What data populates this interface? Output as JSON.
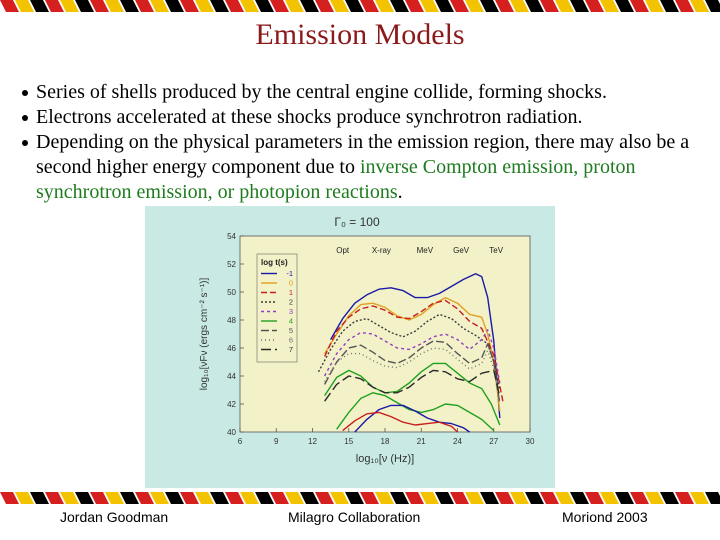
{
  "slide": {
    "title": "Emission Models",
    "bullets": [
      {
        "parts": [
          {
            "text": "Series of shells produced by the central engine  collide, forming shocks.",
            "color": "black"
          }
        ]
      },
      {
        "parts": [
          {
            "text": "Electrons accelerated at these shocks produce synchrotron radiation.",
            "color": "black"
          }
        ]
      },
      {
        "parts": [
          {
            "text": "Depending on the physical parameters in the emission region, there may also be a second higher energy component due to ",
            "color": "black"
          },
          {
            "text": "inverse Compton emission, proton synchrotron emission, or photopion reactions",
            "color": "green"
          },
          {
            "text": ".",
            "color": "black"
          }
        ]
      }
    ],
    "footer": {
      "left": "Jordan Goodman",
      "center": "Milagro Collaboration",
      "right": "Moriond 2003"
    },
    "stripe_colors": [
      "#d62020",
      "#f4c300",
      "#000000",
      "#ffffff"
    ]
  },
  "chart_data": {
    "type": "line",
    "title": "Γ₀ = 100",
    "xlabel": "log₁₀[ν (Hz)]",
    "ylabel": "log₁₀[νFν (ergs cm⁻² s⁻¹)]",
    "xlim": [
      6,
      30
    ],
    "ylim": [
      40,
      54
    ],
    "xticks": [
      6,
      9,
      12,
      15,
      18,
      21,
      24,
      27,
      30
    ],
    "yticks": [
      40,
      42,
      44,
      46,
      48,
      50,
      52,
      54
    ],
    "band_labels": [
      {
        "text": "Opt",
        "x": 14.5
      },
      {
        "text": "X-ray",
        "x": 17.7
      },
      {
        "text": "MeV",
        "x": 21.3
      },
      {
        "text": "GeV",
        "x": 24.3
      },
      {
        "text": "TeV",
        "x": 27.2
      }
    ],
    "legend_title": "log t(s)",
    "legend_position": "top-left",
    "grid": false,
    "background": "#f3f1c8",
    "series": [
      {
        "name": "-1",
        "color": "#1a1aa8",
        "dash": "",
        "x": [
          13.5,
          14.5,
          15.5,
          16.5,
          17.5,
          18.5,
          19.5,
          20.5,
          21.5,
          22.5,
          23.5,
          24.5,
          25.5,
          26.0,
          26.5,
          27.0,
          27.5
        ],
        "y": [
          46.6,
          48.1,
          49.2,
          49.8,
          50.2,
          50.3,
          50.1,
          49.6,
          49.6,
          49.9,
          50.4,
          50.9,
          51.3,
          51.1,
          49.6,
          46.5,
          41.0
        ]
      },
      {
        "name": "0",
        "color": "#e0a020",
        "dash": "",
        "x": [
          13.0,
          14.0,
          15.0,
          16.0,
          17.0,
          18.0,
          19.0,
          20.0,
          21.0,
          22.0,
          23.0,
          24.0,
          25.0,
          26.0,
          26.5,
          27.0,
          27.5
        ],
        "y": [
          45.6,
          47.0,
          48.3,
          49.1,
          49.2,
          48.9,
          48.3,
          48.0,
          48.4,
          49.1,
          49.6,
          49.2,
          48.4,
          48.2,
          47.0,
          45.0,
          41.5
        ]
      },
      {
        "name": "1",
        "color": "#c81e1e",
        "dash": "6,3",
        "x": [
          13.0,
          14.0,
          15.0,
          16.0,
          17.0,
          18.0,
          19.0,
          20.0,
          21.0,
          22.0,
          23.0,
          24.0,
          25.0,
          26.0,
          27.0,
          27.8
        ],
        "y": [
          45.4,
          47.2,
          48.2,
          48.8,
          49.0,
          48.7,
          48.2,
          48.1,
          48.6,
          49.2,
          49.4,
          48.8,
          47.9,
          47.4,
          45.5,
          42.0
        ]
      },
      {
        "name": "2",
        "color": "#3c3c3c",
        "dash": "2,2",
        "x": [
          12.5,
          13.5,
          14.5,
          15.5,
          16.5,
          17.5,
          18.5,
          19.5,
          20.5,
          21.5,
          22.5,
          23.5,
          24.5,
          25.5,
          26.5,
          27.0,
          27.5
        ],
        "y": [
          44.3,
          45.9,
          47.2,
          47.9,
          48.1,
          47.6,
          47.1,
          46.8,
          47.2,
          47.9,
          48.4,
          48.1,
          47.4,
          46.9,
          46.3,
          45.0,
          43.0
        ]
      },
      {
        "name": "3",
        "color": "#9040c0",
        "dash": "3,3",
        "x": [
          13.0,
          14.0,
          15.0,
          16.0,
          17.0,
          18.0,
          19.0,
          20.0,
          21.0,
          22.0,
          23.0,
          24.0,
          25.0,
          26.0,
          26.5,
          27.0,
          27.5
        ],
        "y": [
          44.0,
          45.6,
          46.6,
          47.1,
          47.0,
          46.5,
          46.0,
          45.9,
          46.3,
          46.8,
          47.0,
          46.6,
          45.9,
          46.6,
          47.3,
          46.0,
          43.5
        ]
      },
      {
        "name": "4",
        "color": "#20a020",
        "dash": "",
        "x": [
          13.0,
          14.0,
          15.0,
          16.0,
          17.0,
          18.0,
          19.0,
          20.0,
          21.0,
          22.0,
          23.0,
          24.0,
          25.0,
          26.0,
          26.8,
          27.5
        ],
        "y": [
          42.6,
          43.9,
          44.4,
          44.0,
          43.2,
          42.8,
          42.9,
          43.5,
          44.3,
          44.9,
          44.9,
          44.2,
          43.5,
          43.1,
          42.0,
          40.5
        ]
      },
      {
        "name": "5",
        "color": "#555555",
        "dash": "8,3",
        "x": [
          13.0,
          14.0,
          15.0,
          16.0,
          17.0,
          18.0,
          19.0,
          20.0,
          21.0,
          22.0,
          23.0,
          24.0,
          25.0,
          26.0,
          26.5,
          27.0,
          27.5
        ],
        "y": [
          43.4,
          45.0,
          46.0,
          46.2,
          45.7,
          45.1,
          44.9,
          45.3,
          46.0,
          46.5,
          46.4,
          45.6,
          44.9,
          45.3,
          46.3,
          45.0,
          42.0
        ]
      },
      {
        "name": "6",
        "color": "#707070",
        "dash": "1,3",
        "x": [
          13.0,
          14.0,
          15.0,
          16.0,
          17.0,
          18.0,
          19.0,
          20.0,
          21.0,
          22.0,
          23.0,
          24.0,
          25.0,
          26.0,
          26.5,
          27.0,
          27.5
        ],
        "y": [
          43.6,
          45.0,
          45.6,
          45.6,
          45.1,
          44.7,
          44.6,
          45.0,
          45.6,
          46.0,
          45.9,
          45.2,
          44.5,
          44.9,
          45.8,
          44.5,
          42.0
        ]
      },
      {
        "name": "7",
        "color": "#2a2a2a",
        "dash": "10,4",
        "x": [
          13.0,
          14.0,
          15.0,
          16.0,
          17.0,
          18.0,
          19.0,
          20.0,
          21.0,
          22.0,
          23.0,
          24.0,
          25.0,
          26.0,
          27.0,
          27.5
        ],
        "y": [
          42.2,
          43.4,
          44.0,
          43.8,
          43.2,
          42.8,
          42.8,
          43.2,
          43.9,
          44.4,
          44.3,
          43.8,
          43.6,
          44.2,
          44.4,
          42.5
        ]
      },
      {
        "name": "",
        "color": "#20a020",
        "dash": "",
        "x": [
          14.0,
          15.0,
          16.0,
          17.0,
          18.0,
          19.0,
          20.0,
          21.0,
          22.0,
          23.0,
          24.0,
          25.0,
          26.0,
          27.0
        ],
        "y": [
          40.2,
          41.4,
          42.4,
          42.8,
          42.6,
          42.1,
          41.6,
          41.4,
          41.6,
          42.0,
          41.9,
          41.4,
          40.9,
          40.1
        ]
      },
      {
        "name": "",
        "color": "#1a1aa8",
        "dash": "",
        "x": [
          15.5,
          16.5,
          17.5,
          18.5,
          19.5,
          20.5,
          21.5,
          22.5,
          23.5,
          24.5,
          25.0
        ],
        "y": [
          40.0,
          40.9,
          41.6,
          41.9,
          41.9,
          41.5,
          41.0,
          40.7,
          40.6,
          40.3,
          40.0
        ]
      },
      {
        "name": "",
        "color": "#c81e1e",
        "dash": "",
        "x": [
          14.5,
          15.5,
          16.5,
          17.5,
          18.5,
          19.5,
          20.5,
          21.5,
          22.5,
          23.5,
          24.0
        ],
        "y": [
          40.1,
          40.8,
          41.3,
          41.4,
          41.1,
          40.7,
          40.5,
          40.6,
          40.7,
          40.4,
          40.0
        ]
      }
    ]
  }
}
